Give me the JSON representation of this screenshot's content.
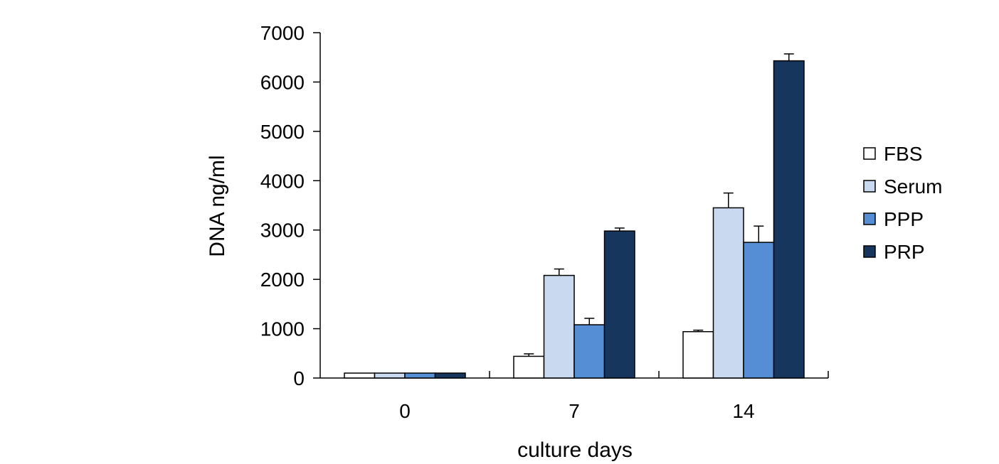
{
  "chart_data": {
    "type": "bar",
    "xlabel": "culture days",
    "ylabel": "DNA ng/ml",
    "categories": [
      "0",
      "7",
      "14"
    ],
    "ylim": [
      0,
      7000
    ],
    "yticks": [
      0,
      1000,
      2000,
      3000,
      4000,
      5000,
      6000,
      7000
    ],
    "error_bars": "upper only",
    "legend_position": "right",
    "grid": false,
    "series": [
      {
        "name": "FBS",
        "color": "#ffffff",
        "values": [
          100,
          440,
          940
        ],
        "errors": [
          0,
          50,
          30
        ]
      },
      {
        "name": "Serum",
        "color": "#c9daf0",
        "values": [
          100,
          2080,
          3450
        ],
        "errors": [
          0,
          130,
          300
        ]
      },
      {
        "name": "PPP",
        "color": "#558ed5",
        "values": [
          100,
          1080,
          2750
        ],
        "errors": [
          0,
          130,
          330
        ]
      },
      {
        "name": "PRP",
        "color": "#17365d",
        "values": [
          100,
          2980,
          6430
        ],
        "errors": [
          0,
          60,
          140
        ]
      }
    ]
  }
}
